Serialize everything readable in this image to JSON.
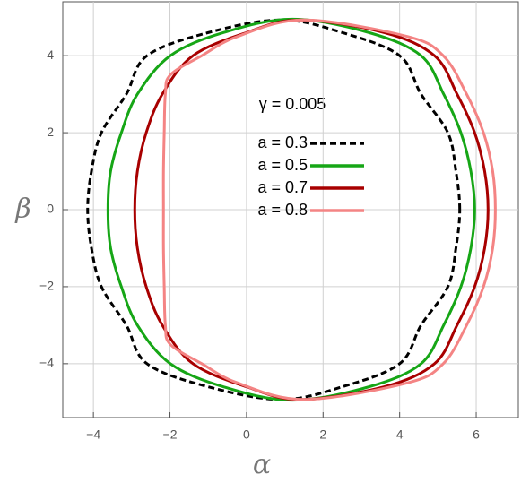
{
  "chart_data": {
    "type": "line",
    "annotation": "γ = 0.005",
    "x_label": "α",
    "y_label": "β",
    "xlim": [
      -4.8,
      7.1
    ],
    "ylim": [
      -5.4,
      5.4
    ],
    "xticks": [
      {
        "value": -4,
        "label": "−4"
      },
      {
        "value": -2,
        "label": "−2"
      },
      0,
      2,
      4,
      6
    ],
    "yticks": [
      {
        "value": -4,
        "label": "−4"
      },
      {
        "value": -2,
        "label": "−2"
      },
      0,
      2,
      4
    ],
    "grid": true,
    "series": [
      {
        "name": "a = 0.3",
        "color": "#000000",
        "dashed": true,
        "x": [
          5.57,
          5.47,
          5.26,
          4.56,
          4.0,
          2.5,
          0.9,
          -1.0,
          -2.6,
          -3.14,
          -3.79,
          -4.05,
          -4.15,
          -4.05,
          -3.79,
          -3.14,
          -2.6,
          -1.0,
          0.9,
          2.5,
          4.0,
          4.56,
          5.26,
          5.47,
          5.57
        ],
        "values": [
          0,
          1,
          2,
          3,
          4,
          4.6,
          4.93,
          4.6,
          4,
          3,
          2,
          1,
          0,
          -1,
          -2,
          -3,
          -4,
          -4.6,
          -4.93,
          -4.6,
          -4,
          -3,
          -2,
          -1,
          0
        ]
      },
      {
        "name": "a = 0.5",
        "color": "#16a616",
        "dashed": false,
        "x": [
          5.96,
          5.86,
          5.6,
          5.15,
          4.56,
          3.2,
          1.2,
          -0.6,
          -1.99,
          -2.85,
          -3.27,
          -3.55,
          -3.62,
          -3.55,
          -3.27,
          -2.85,
          -1.99,
          -0.6,
          1.2,
          3.2,
          4.56,
          5.15,
          5.6,
          5.86,
          5.96
        ],
        "values": [
          0,
          1,
          2,
          3,
          4,
          4.6,
          4.95,
          4.6,
          4,
          3,
          2,
          1,
          0,
          -1,
          -2,
          -3,
          -4,
          -4.6,
          -4.95,
          -4.6,
          -4,
          -3,
          -2,
          -1,
          0
        ]
      },
      {
        "name": "a = 0.7",
        "color": "#a80000",
        "dashed": false,
        "x": [
          6.31,
          6.22,
          5.96,
          5.5,
          4.91,
          3.6,
          1.4,
          0.0,
          -1.4,
          -2.2,
          -2.62,
          -2.85,
          -2.92,
          -2.85,
          -2.62,
          -2.2,
          -1.4,
          0.0,
          1.4,
          3.6,
          4.91,
          5.5,
          5.96,
          6.22,
          6.31
        ],
        "values": [
          0,
          1,
          2,
          3,
          4,
          4.6,
          4.93,
          4.6,
          4,
          3,
          2,
          1,
          0,
          -1,
          -2,
          -3,
          -4,
          -4.6,
          -4.93,
          -4.6,
          -4,
          -3,
          -2,
          -1,
          0
        ]
      },
      {
        "name": "a = 0.8",
        "color": "#f48484",
        "dashed": false,
        "x": [
          6.5,
          6.43,
          6.19,
          5.75,
          5.14,
          4.2,
          1.5,
          -0.23,
          -1.17,
          -1.99,
          -2.12,
          -2.15,
          -2.17,
          -2.17,
          -2.17,
          -2.15,
          -2.12,
          -1.99,
          -1.17,
          -0.23,
          1.5,
          4.2,
          5.14,
          5.75,
          6.19,
          6.43,
          6.5
        ],
        "values": [
          0,
          1,
          2,
          3,
          4,
          4.5,
          4.93,
          4.5,
          4,
          3.5,
          3,
          2,
          1,
          0,
          -1,
          -2,
          -3,
          -3.5,
          -4,
          -4.5,
          -4.93,
          -4.5,
          -4,
          -3,
          -2,
          -1,
          0
        ]
      }
    ]
  }
}
